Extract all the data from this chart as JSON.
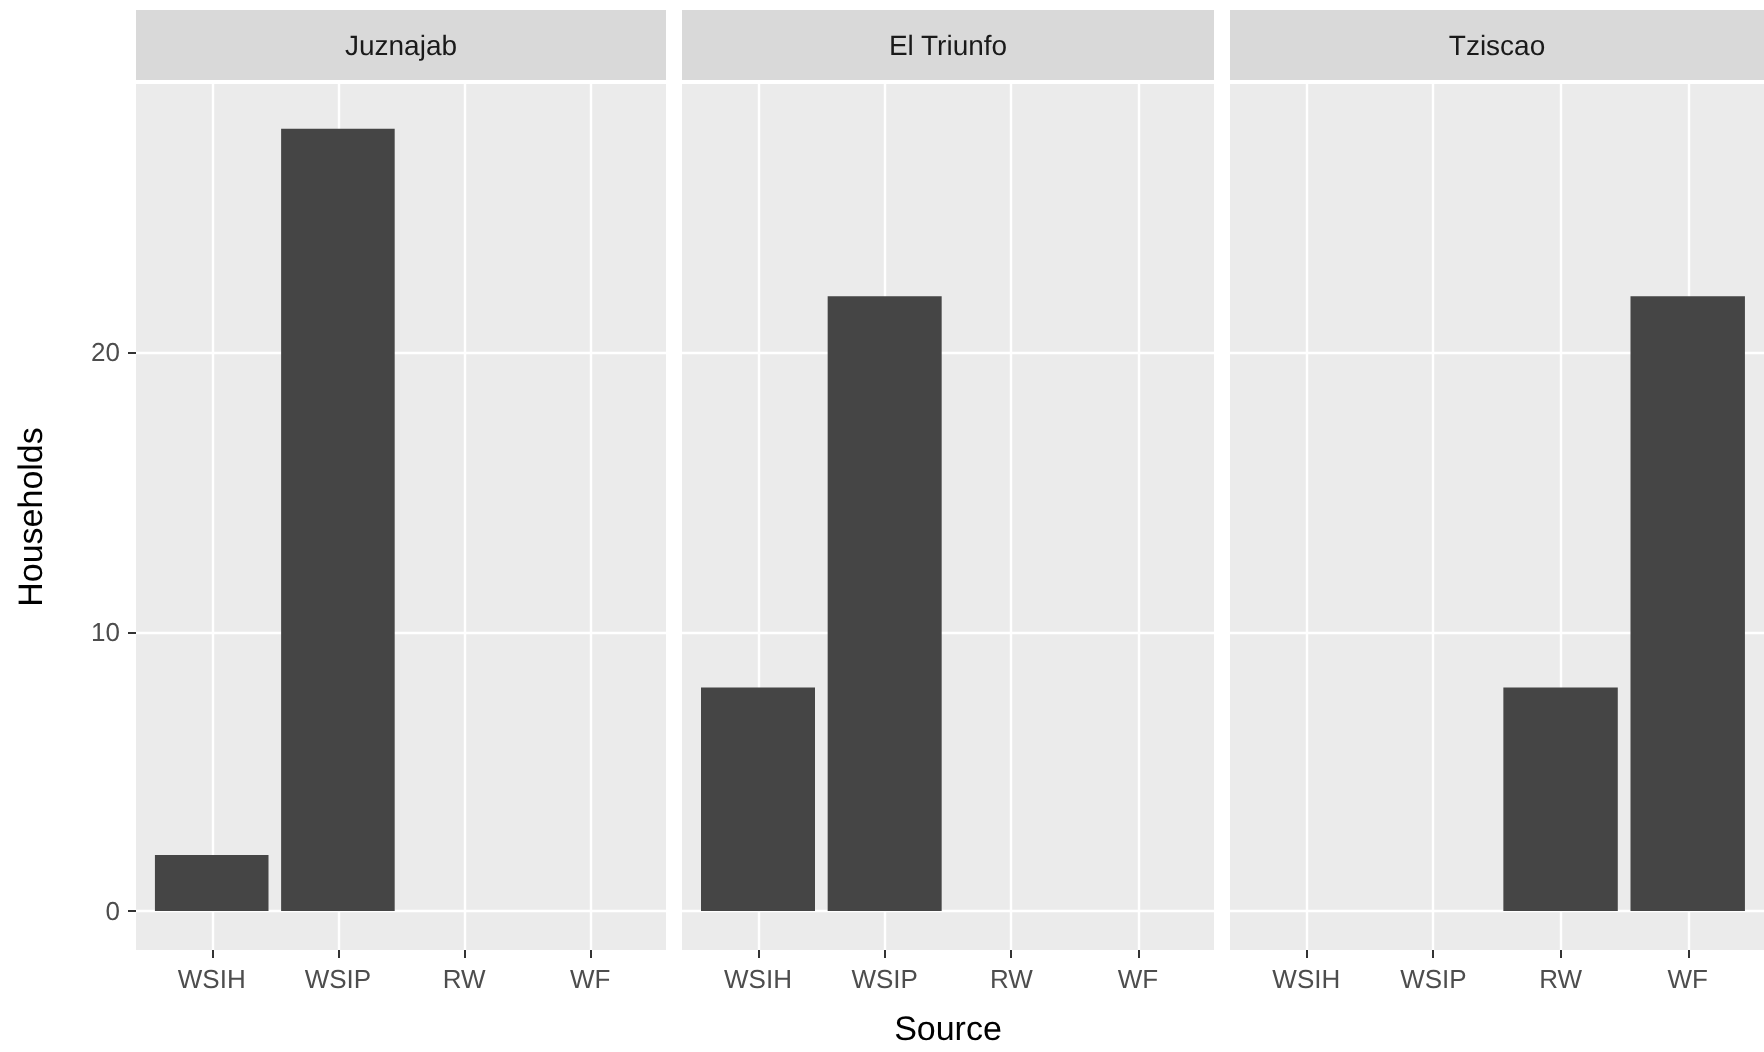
{
  "chart_data": [
    {
      "type": "bar",
      "title": "Juznajab",
      "ylabel": "Households",
      "categories": [
        "WSIH",
        "WSIP",
        "RW",
        "WF"
      ],
      "values": [
        2,
        28,
        0,
        0
      ],
      "color": "#454545",
      "ylim": [
        -1.4,
        29.6
      ],
      "yticks": [
        0,
        10,
        20
      ],
      "grid": true
    },
    {
      "type": "bar",
      "title": "El Triunfo",
      "xlabel": "Source",
      "categories": [
        "WSIH",
        "WSIP",
        "RW",
        "WF"
      ],
      "values": [
        8,
        22,
        0,
        0
      ],
      "color": "#454545",
      "ylim": [
        -1.4,
        29.6
      ],
      "yticks": [
        0,
        10,
        20
      ],
      "grid": true,
      "tick_labels": "x"
    },
    {
      "type": "bar",
      "title": "Tziscao",
      "categories": [
        "WSIH",
        "WSIP",
        "RW",
        "WF"
      ],
      "values": [
        0,
        0,
        8,
        22
      ],
      "color": "#454545",
      "ylim": [
        -1.4,
        29.6
      ],
      "yticks": [
        0,
        10,
        20
      ],
      "grid": true,
      "tick_labels": "x"
    }
  ]
}
